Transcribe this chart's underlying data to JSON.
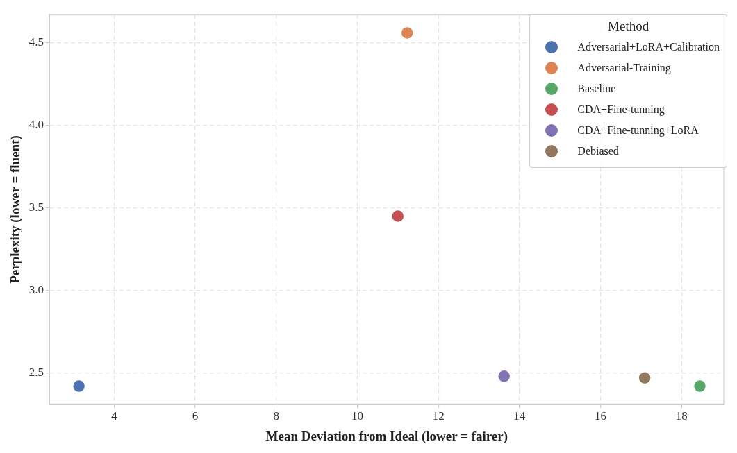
{
  "chart_data": {
    "type": "scatter",
    "xlabel": "Mean Deviation from Ideal (lower = fairer)",
    "ylabel": "Perplexity (lower = fluent)",
    "legend_title": "Method",
    "legend": "top right",
    "grid": true,
    "marker": "circle",
    "xlim": [
      2.4,
      19.05
    ],
    "ylim": [
      2.31,
      4.67
    ],
    "xticks": [
      4,
      6,
      8,
      10,
      12,
      14,
      16,
      18
    ],
    "yticks": [
      2.5,
      {
        "value": 3,
        "label": "3.0"
      },
      3.5,
      {
        "value": 4,
        "label": "4.0"
      },
      4.5
    ],
    "series": [
      {
        "name": "Adversarial+LoRA+Calibration",
        "color": "#4c72b0",
        "x": [
          3.13
        ],
        "values": [
          2.42
        ]
      },
      {
        "name": "Adversarial-Training",
        "color": "#dd8452",
        "x": [
          11.23
        ],
        "values": [
          4.56
        ]
      },
      {
        "name": "Baseline",
        "color": "#55a868",
        "x": [
          18.45
        ],
        "values": [
          2.42
        ]
      },
      {
        "name": "CDA+Fine-tunning",
        "color": "#c44e52",
        "x": [
          11.0
        ],
        "values": [
          3.45
        ]
      },
      {
        "name": "CDA+Fine-tunning+LoRA",
        "color": "#8172b3",
        "x": [
          13.62
        ],
        "values": [
          2.48
        ]
      },
      {
        "name": "Debiased",
        "color": "#937860",
        "x": [
          17.09
        ],
        "values": [
          2.47
        ]
      }
    ]
  }
}
